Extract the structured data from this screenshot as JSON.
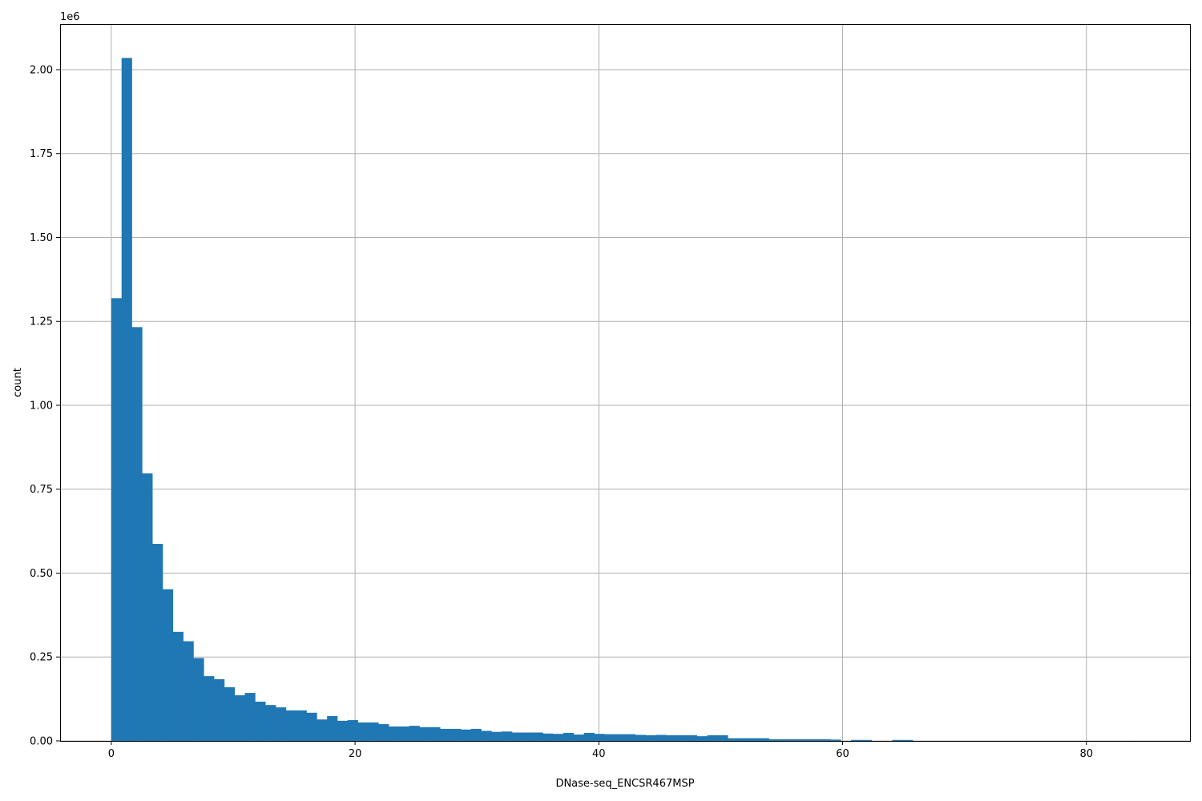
{
  "chart_data": {
    "type": "bar",
    "subtype": "histogram",
    "title": "",
    "xlabel": "DNase-seq_ENCSR467MSP",
    "ylabel": "count",
    "y_offset_text": "1e6",
    "xlim": [
      -4.2,
      88.5
    ],
    "ylim": [
      0,
      2136000
    ],
    "xticks": [
      0,
      20,
      40,
      60,
      80
    ],
    "xtick_labels": [
      "0",
      "20",
      "40",
      "60",
      "80"
    ],
    "yticks": [
      0,
      250000,
      500000,
      750000,
      1000000,
      1250000,
      1500000,
      1750000,
      2000000
    ],
    "ytick_labels": [
      "0.00",
      "0.25",
      "0.50",
      "0.75",
      "1.00",
      "1.25",
      "1.50",
      "1.75",
      "2.00"
    ],
    "grid": true,
    "bar_color": "#1f77b4",
    "bin_start": 0,
    "bin_width": 0.843,
    "counts": [
      1319000,
      2035000,
      1233000,
      797000,
      587000,
      452000,
      325000,
      297000,
      247000,
      193000,
      184000,
      160000,
      136000,
      143000,
      117000,
      107000,
      100000,
      91000,
      91000,
      84000,
      64000,
      74000,
      60000,
      62000,
      55000,
      55000,
      50000,
      43000,
      43000,
      45000,
      41000,
      41000,
      36000,
      36000,
      34000,
      36000,
      30000,
      27000,
      28000,
      25000,
      25000,
      25000,
      22000,
      21000,
      24000,
      19000,
      24000,
      21000,
      20000,
      20000,
      20000,
      18000,
      17000,
      18000,
      17000,
      17000,
      17000,
      14000,
      17000,
      17000,
      8000,
      8000,
      8000,
      8000,
      5000,
      5000,
      5000,
      5000,
      5000,
      5000,
      4000,
      0,
      3000,
      3000,
      0,
      0,
      3000,
      3000,
      0,
      0,
      0,
      0,
      0,
      0,
      0,
      0,
      0,
      0,
      0,
      0,
      0,
      0,
      0,
      0,
      0,
      0,
      0,
      0,
      0,
      100
    ]
  }
}
